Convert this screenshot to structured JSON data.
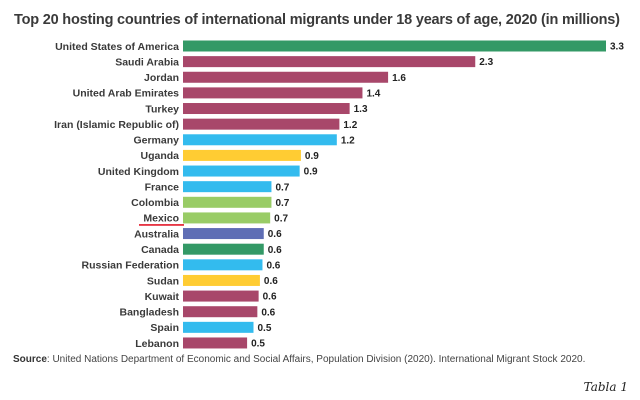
{
  "chart_data": {
    "type": "bar",
    "orientation": "horizontal",
    "title": "Top 20 hosting countries of international migrants under 18 years of age, 2020 (in millions)",
    "xlabel": "",
    "ylabel": "",
    "xlim": [
      0,
      3.3
    ],
    "grid": false,
    "legend": "none",
    "categories": [
      "United States of America",
      "Saudi Arabia",
      "Jordan",
      "United Arab Emirates",
      "Turkey",
      "Iran (Islamic Republic of)",
      "Germany",
      "Uganda",
      "United Kingdom",
      "France",
      "Colombia",
      "Mexico",
      "Australia",
      "Canada",
      "Russian Federation",
      "Sudan",
      "Kuwait",
      "Bangladesh",
      "Spain",
      "Lebanon"
    ],
    "values": [
      3.3,
      2.3,
      1.6,
      1.4,
      1.3,
      1.2,
      1.2,
      0.9,
      0.9,
      0.7,
      0.7,
      0.7,
      0.6,
      0.6,
      0.6,
      0.6,
      0.6,
      0.6,
      0.5,
      0.5
    ],
    "data_labels": [
      "3.3",
      "2.3",
      "1.6",
      "1.4",
      "1.3",
      "1.2",
      "1.2",
      "0.9",
      "0.9",
      "0.7",
      "0.7",
      "0.7",
      "0.6",
      "0.6",
      "0.6",
      "0.6",
      "0.6",
      "0.6",
      "0.5",
      "0.5"
    ],
    "precise_values_estimate": [
      3.3,
      2.28,
      1.6,
      1.4,
      1.3,
      1.22,
      1.2,
      0.92,
      0.91,
      0.69,
      0.69,
      0.68,
      0.63,
      0.63,
      0.62,
      0.6,
      0.59,
      0.58,
      0.55,
      0.5
    ],
    "bar_colors": [
      "#339966",
      "#a8476a",
      "#a8476a",
      "#a8476a",
      "#a8476a",
      "#a8476a",
      "#33bbee",
      "#ffcc33",
      "#33bbee",
      "#33bbee",
      "#99cc66",
      "#99cc66",
      "#5f6eb5",
      "#339966",
      "#33bbee",
      "#ffcc33",
      "#a8476a",
      "#a8476a",
      "#33bbee",
      "#a8476a"
    ],
    "highlighted_category": "Mexico",
    "highlight_color": "#e3192a"
  },
  "source_label": "Source",
  "source_text": ": United Nations Department of Economic and Social Affairs, Population Division (2020). International Migrant Stock 2020.",
  "caption": "Tabla 1"
}
